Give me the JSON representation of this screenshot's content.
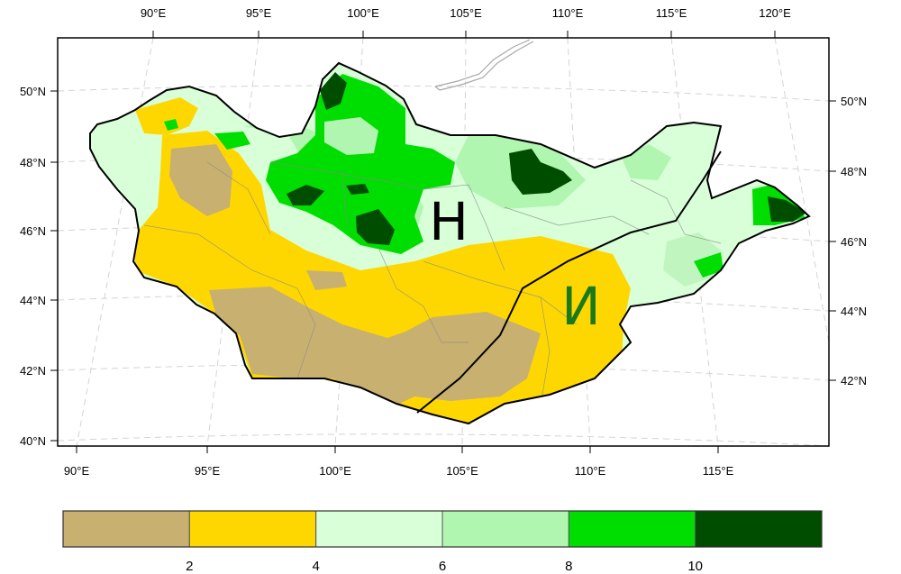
{
  "map": {
    "top_lon_labels": [
      "90°E",
      "95°E",
      "100°E",
      "105°E",
      "110°E",
      "115°E",
      "120°E"
    ],
    "bottom_lon_labels": [
      "90°E",
      "95°E",
      "100°E",
      "105°E",
      "110°E",
      "115°E"
    ],
    "left_lat_labels": [
      "50°N",
      "48°N",
      "46°N",
      "44°N",
      "42°N",
      "40°N"
    ],
    "right_lat_labels": [
      "50°N",
      "48°N",
      "46°N",
      "44°N",
      "42°N"
    ],
    "zone_labels": [
      {
        "text": "Н",
        "color": "#000000"
      },
      {
        "text": "И",
        "color": "#1a7a1a"
      }
    ]
  },
  "colorbar": {
    "ticks": [
      "2",
      "4",
      "6",
      "8",
      "10"
    ],
    "colors": [
      "#c8b070",
      "#ffd700",
      "#d8ffd8",
      "#b0f5b0",
      "#00dd00",
      "#004d00"
    ]
  }
}
